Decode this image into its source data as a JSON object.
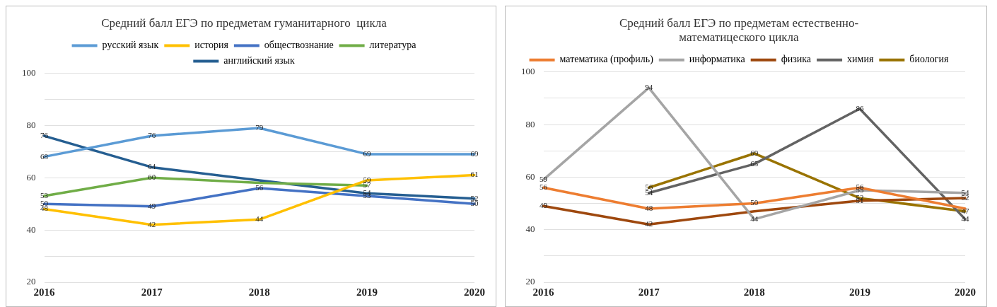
{
  "chart_data": [
    {
      "type": "line",
      "title": "Средний балл ЕГЭ по предметам гуманитарного  цикла",
      "categories": [
        "2016",
        "2017",
        "2018",
        "2019",
        "2020"
      ],
      "ylim": [
        20,
        100
      ],
      "yticks": [
        20,
        {
          "value": 30,
          "label": null
        },
        40,
        {
          "value": 50,
          "label": null
        },
        60,
        {
          "value": 70,
          "label": null
        },
        80,
        {
          "value": 90,
          "label": null
        },
        100
      ],
      "grid": "y",
      "legend": "top",
      "marker": "none",
      "line_style": "solid",
      "series": [
        {
          "name": "русский язык",
          "color": "#5b9bd5",
          "values": [
            68,
            76,
            79,
            69,
            69
          ],
          "value_labels": [
            "68",
            "76",
            "79",
            "69",
            "69"
          ]
        },
        {
          "name": "история",
          "color": "#ffc000",
          "values": [
            48,
            42,
            44,
            59,
            61
          ],
          "value_labels": [
            "48",
            "42",
            "44",
            "59",
            "61"
          ]
        },
        {
          "name": "обществознание",
          "color": "#4472c4",
          "values": [
            50,
            49,
            56,
            53,
            50
          ],
          "value_labels": [
            "50",
            "49",
            "56",
            "53",
            "50"
          ]
        },
        {
          "name": "литература",
          "color": "#70ad47",
          "values": [
            53,
            60,
            58,
            57,
            null
          ],
          "value_labels": [
            "53",
            "60",
            null,
            "57",
            null
          ]
        },
        {
          "name": "английский язык",
          "color": "#255e91",
          "values": [
            76,
            64,
            59,
            54,
            52
          ],
          "value_labels": [
            "76",
            "64",
            null,
            "54",
            "52"
          ]
        }
      ]
    },
    {
      "type": "line",
      "title": "Средний балл ЕГЭ по предметам естественно-математицеского цикла",
      "categories": [
        "2016",
        "2017",
        "2018",
        "2019",
        "2020"
      ],
      "ylim": [
        20,
        100
      ],
      "yticks": [
        20,
        {
          "value": 30,
          "label": null
        },
        40,
        {
          "value": 50,
          "label": null
        },
        60,
        {
          "value": 70,
          "label": null
        },
        80,
        {
          "value": 90,
          "label": null
        },
        100
      ],
      "grid": "y",
      "legend": "top",
      "marker": "none",
      "line_style": "solid",
      "series": [
        {
          "name": "математика (профиль)",
          "color": "#ed7d31",
          "values": [
            56,
            48,
            50,
            56,
            48
          ],
          "value_labels": [
            "56",
            "48",
            "50",
            "56",
            null
          ]
        },
        {
          "name": "информатика",
          "color": "#a5a5a5",
          "values": [
            59,
            94,
            44,
            55,
            54
          ],
          "value_labels": [
            "59",
            "94",
            "44",
            "55",
            "54"
          ]
        },
        {
          "name": "физика",
          "color": "#9e480e",
          "values": [
            49,
            42,
            47,
            51,
            52
          ],
          "value_labels": [
            "49",
            "42",
            null,
            "51",
            "52"
          ]
        },
        {
          "name": "химия",
          "color": "#636363",
          "values": [
            null,
            54,
            65,
            86,
            44
          ],
          "value_labels": [
            null,
            "54",
            "65",
            "86",
            "44"
          ]
        },
        {
          "name": "биология",
          "color": "#997300",
          "values": [
            null,
            56,
            69,
            52,
            47
          ],
          "value_labels": [
            null,
            "56",
            "69",
            "52",
            "47"
          ]
        }
      ]
    }
  ]
}
